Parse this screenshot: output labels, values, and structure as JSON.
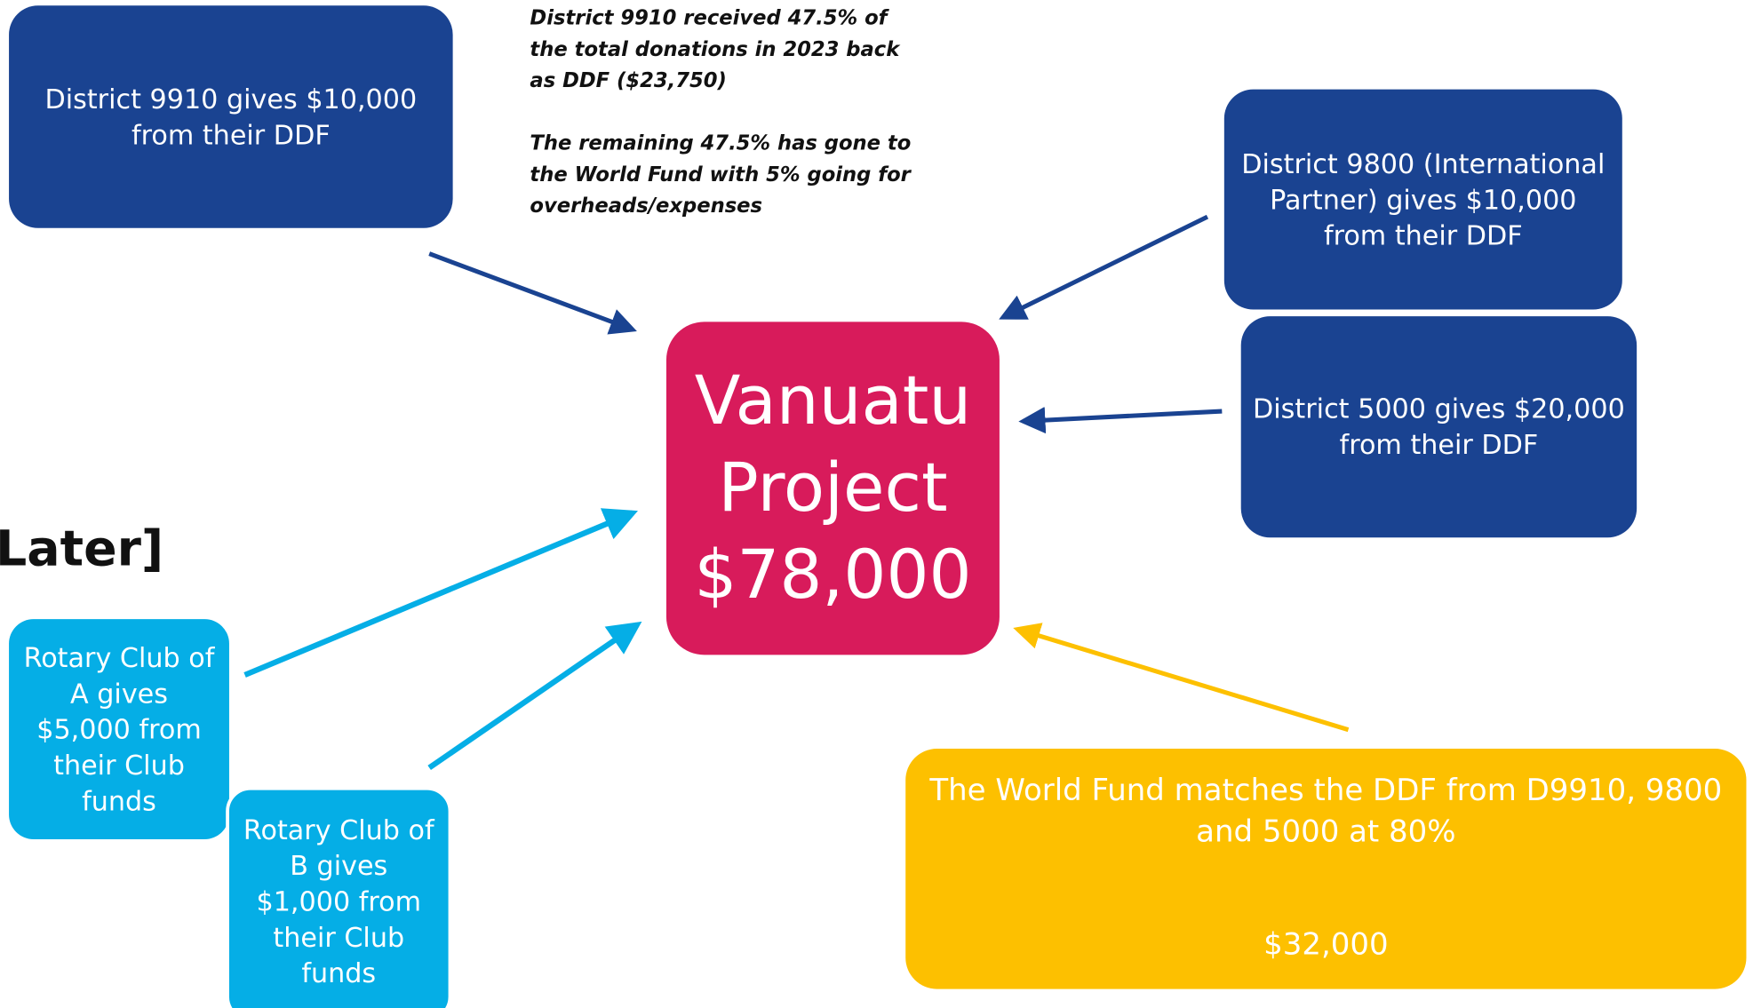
{
  "boxes": {
    "d9910": {
      "lines": [
        "District 9910 gives $10,000",
        "from their DDF"
      ]
    },
    "note": {
      "paragraphs": [
        [
          "District 9910 received 47.5% of",
          "the total donations in 2023 back",
          "as DDF ($23,750)"
        ],
        [
          "The remaining 47.5% has gone to",
          "the World Fund with 5% going for",
          "overheads/expenses"
        ]
      ]
    },
    "d9800": {
      "lines": [
        "District 9800 (International",
        "Partner) gives $10,000",
        "from their DDF"
      ]
    },
    "d5000": {
      "lines": [
        "District 5000 gives $20,000",
        "from their DDF"
      ]
    },
    "project": {
      "lines": [
        "Vanuatu",
        "Project",
        "$78,000"
      ]
    },
    "heading": "Later]",
    "clubA": {
      "lines": [
        "Rotary Club of",
        "A gives",
        "$5,000 from",
        "their Club",
        "funds"
      ]
    },
    "clubB": {
      "lines": [
        "Rotary Club of",
        "B gives",
        "$1,000 from",
        "their Club",
        "funds"
      ]
    },
    "worldFund": {
      "lines": [
        "The World Fund matches the DDF from D9910, 9800",
        "and 5000 at 80%"
      ],
      "amount": "$32,000"
    }
  }
}
